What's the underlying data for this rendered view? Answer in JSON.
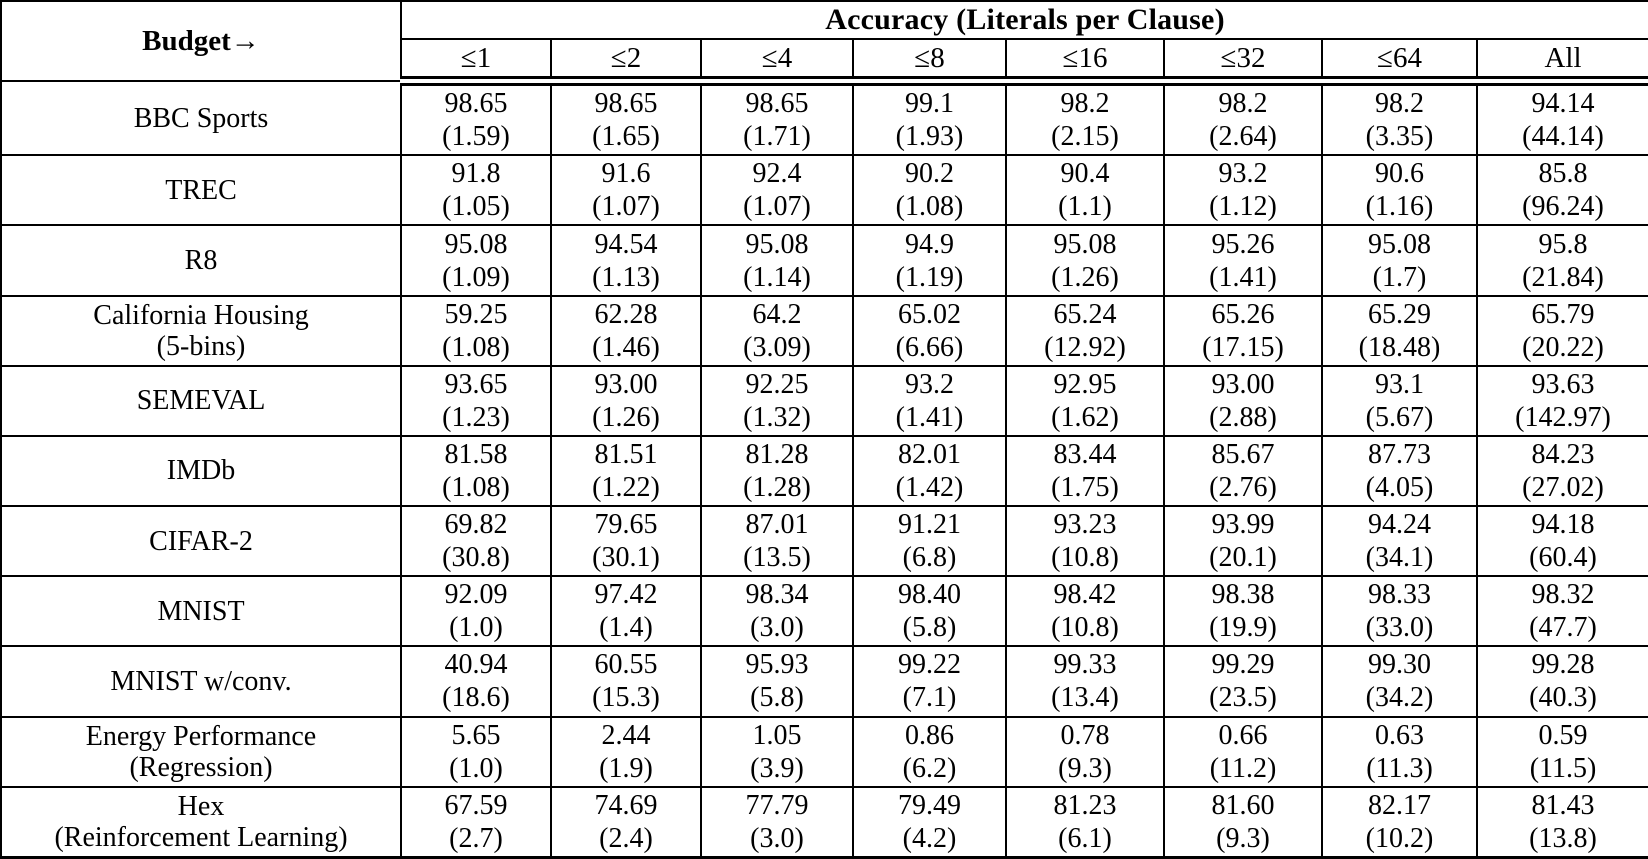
{
  "table": {
    "group_header": "Accuracy (Literals per Clause)",
    "row_header_label": "Budget→",
    "columns": [
      "≤1",
      "≤2",
      "≤4",
      "≤8",
      "≤16",
      "≤32",
      "≤64",
      "All"
    ],
    "rows": [
      {
        "label": "BBC Sports",
        "label_line2": "",
        "cells": [
          {
            "acc": "98.65",
            "lpc": "(1.59)"
          },
          {
            "acc": "98.65",
            "lpc": "(1.65)"
          },
          {
            "acc": "98.65",
            "lpc": "(1.71)"
          },
          {
            "acc": "99.1",
            "lpc": "(1.93)"
          },
          {
            "acc": "98.2",
            "lpc": "(2.15)"
          },
          {
            "acc": "98.2",
            "lpc": "(2.64)"
          },
          {
            "acc": "98.2",
            "lpc": "(3.35)"
          },
          {
            "acc": "94.14",
            "lpc": "(44.14)"
          }
        ]
      },
      {
        "label": "TREC",
        "label_line2": "",
        "cells": [
          {
            "acc": "91.8",
            "lpc": "(1.05)"
          },
          {
            "acc": "91.6",
            "lpc": "(1.07)"
          },
          {
            "acc": "92.4",
            "lpc": "(1.07)"
          },
          {
            "acc": "90.2",
            "lpc": "(1.08)"
          },
          {
            "acc": "90.4",
            "lpc": "(1.1)"
          },
          {
            "acc": "93.2",
            "lpc": "(1.12)"
          },
          {
            "acc": "90.6",
            "lpc": "(1.16)"
          },
          {
            "acc": "85.8",
            "lpc": "(96.24)"
          }
        ]
      },
      {
        "label": "R8",
        "label_line2": "",
        "cells": [
          {
            "acc": "95.08",
            "lpc": "(1.09)"
          },
          {
            "acc": "94.54",
            "lpc": "(1.13)"
          },
          {
            "acc": "95.08",
            "lpc": "(1.14)"
          },
          {
            "acc": "94.9",
            "lpc": "(1.19)"
          },
          {
            "acc": "95.08",
            "lpc": "(1.26)"
          },
          {
            "acc": "95.26",
            "lpc": "(1.41)"
          },
          {
            "acc": "95.08",
            "lpc": "(1.7)"
          },
          {
            "acc": "95.8",
            "lpc": "(21.84)"
          }
        ]
      },
      {
        "label": "California Housing",
        "label_line2": "(5-bins)",
        "cells": [
          {
            "acc": "59.25",
            "lpc": "(1.08)"
          },
          {
            "acc": "62.28",
            "lpc": "(1.46)"
          },
          {
            "acc": "64.2",
            "lpc": "(3.09)"
          },
          {
            "acc": "65.02",
            "lpc": "(6.66)"
          },
          {
            "acc": "65.24",
            "lpc": "(12.92)"
          },
          {
            "acc": "65.26",
            "lpc": "(17.15)"
          },
          {
            "acc": "65.29",
            "lpc": "(18.48)"
          },
          {
            "acc": "65.79",
            "lpc": "(20.22)"
          }
        ]
      },
      {
        "label": "SEMEVAL",
        "label_line2": "",
        "cells": [
          {
            "acc": "93.65",
            "lpc": "(1.23)"
          },
          {
            "acc": "93.00",
            "lpc": "(1.26)"
          },
          {
            "acc": "92.25",
            "lpc": "(1.32)"
          },
          {
            "acc": "93.2",
            "lpc": "(1.41)"
          },
          {
            "acc": "92.95",
            "lpc": "(1.62)"
          },
          {
            "acc": "93.00",
            "lpc": "(2.88)"
          },
          {
            "acc": "93.1",
            "lpc": "(5.67)"
          },
          {
            "acc": "93.63",
            "lpc": "(142.97)"
          }
        ]
      },
      {
        "label": "IMDb",
        "label_line2": "",
        "cells": [
          {
            "acc": "81.58",
            "lpc": "(1.08)"
          },
          {
            "acc": "81.51",
            "lpc": "(1.22)"
          },
          {
            "acc": "81.28",
            "lpc": "(1.28)"
          },
          {
            "acc": "82.01",
            "lpc": "(1.42)"
          },
          {
            "acc": "83.44",
            "lpc": "(1.75)"
          },
          {
            "acc": "85.67",
            "lpc": "(2.76)"
          },
          {
            "acc": "87.73",
            "lpc": "(4.05)"
          },
          {
            "acc": "84.23",
            "lpc": "(27.02)"
          }
        ]
      },
      {
        "label": "CIFAR-2",
        "label_line2": "",
        "cells": [
          {
            "acc": "69.82",
            "lpc": "(30.8)"
          },
          {
            "acc": "79.65",
            "lpc": "(30.1)"
          },
          {
            "acc": "87.01",
            "lpc": "(13.5)"
          },
          {
            "acc": "91.21",
            "lpc": "(6.8)"
          },
          {
            "acc": "93.23",
            "lpc": "(10.8)"
          },
          {
            "acc": "93.99",
            "lpc": "(20.1)"
          },
          {
            "acc": "94.24",
            "lpc": "(34.1)"
          },
          {
            "acc": "94.18",
            "lpc": "(60.4)"
          }
        ]
      },
      {
        "label": "MNIST",
        "label_line2": "",
        "cells": [
          {
            "acc": "92.09",
            "lpc": "(1.0)"
          },
          {
            "acc": "97.42",
            "lpc": "(1.4)"
          },
          {
            "acc": "98.34",
            "lpc": "(3.0)"
          },
          {
            "acc": "98.40",
            "lpc": "(5.8)"
          },
          {
            "acc": "98.42",
            "lpc": "(10.8)"
          },
          {
            "acc": "98.38",
            "lpc": "(19.9)"
          },
          {
            "acc": "98.33",
            "lpc": "(33.0)"
          },
          {
            "acc": "98.32",
            "lpc": "(47.7)"
          }
        ]
      },
      {
        "label": "MNIST w/conv.",
        "label_line2": "",
        "cells": [
          {
            "acc": "40.94",
            "lpc": "(18.6)"
          },
          {
            "acc": "60.55",
            "lpc": "(15.3)"
          },
          {
            "acc": "95.93",
            "lpc": "(5.8)"
          },
          {
            "acc": "99.22",
            "lpc": "(7.1)"
          },
          {
            "acc": "99.33",
            "lpc": "(13.4)"
          },
          {
            "acc": "99.29",
            "lpc": "(23.5)"
          },
          {
            "acc": "99.30",
            "lpc": "(34.2)"
          },
          {
            "acc": "99.28",
            "lpc": "(40.3)"
          }
        ]
      },
      {
        "label": "Energy Performance",
        "label_line2": "(Regression)",
        "cells": [
          {
            "acc": "5.65",
            "lpc": "(1.0)"
          },
          {
            "acc": "2.44",
            "lpc": "(1.9)"
          },
          {
            "acc": "1.05",
            "lpc": "(3.9)"
          },
          {
            "acc": "0.86",
            "lpc": "(6.2)"
          },
          {
            "acc": "0.78",
            "lpc": "(9.3)"
          },
          {
            "acc": "0.66",
            "lpc": "(11.2)"
          },
          {
            "acc": "0.63",
            "lpc": "(11.3)"
          },
          {
            "acc": "0.59",
            "lpc": "(11.5)"
          }
        ]
      },
      {
        "label": "Hex",
        "label_line2": "(Reinforcement Learning)",
        "cells": [
          {
            "acc": "67.59",
            "lpc": "(2.7)"
          },
          {
            "acc": "74.69",
            "lpc": "(2.4)"
          },
          {
            "acc": "77.79",
            "lpc": "(3.0)"
          },
          {
            "acc": "79.49",
            "lpc": "(4.2)"
          },
          {
            "acc": "81.23",
            "lpc": "(6.1)"
          },
          {
            "acc": "81.60",
            "lpc": "(9.3)"
          },
          {
            "acc": "82.17",
            "lpc": "(10.2)"
          },
          {
            "acc": "81.43",
            "lpc": "(13.8)"
          }
        ]
      }
    ]
  }
}
